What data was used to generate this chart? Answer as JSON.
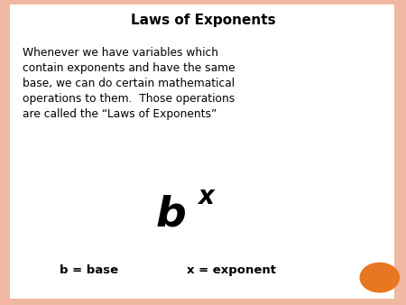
{
  "title": "Laws of Exponents",
  "body_text": "Whenever we have variables which\ncontain exponents and have the same\nbase, we can do certain mathematical\noperations to them.  Those operations\nare called the “Laws of Exponents”",
  "formula_base": "b",
  "formula_exp": "x",
  "label_left": "b = base",
  "label_right": "x = exponent",
  "bg_color": "#ffffff",
  "border_color": "#f0b8a0",
  "title_color": "#000000",
  "body_color": "#000000",
  "formula_color": "#000000",
  "label_color": "#000000",
  "circle_color": "#e87722",
  "title_fontsize": 11,
  "body_fontsize": 8.8,
  "formula_fontsize": 34,
  "exp_fontsize": 20,
  "label_fontsize": 9.5
}
